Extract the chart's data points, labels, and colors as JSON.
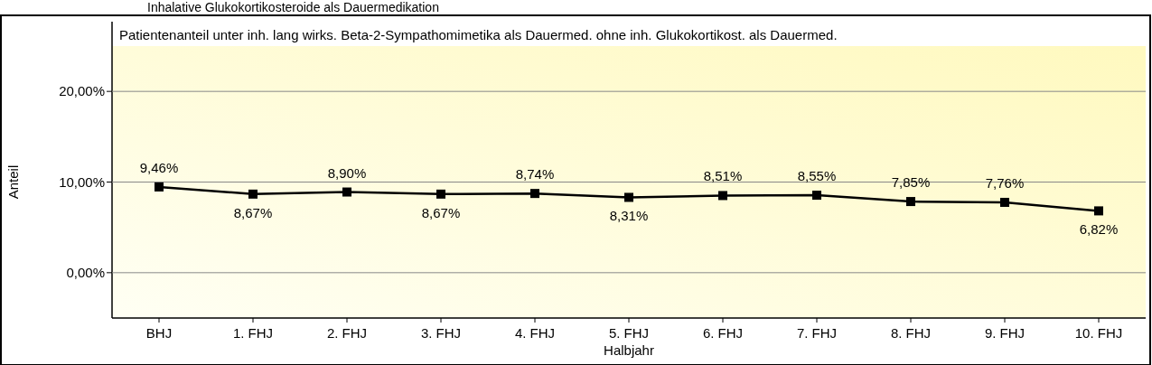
{
  "chart_data": {
    "type": "line",
    "title": "Inhalative Glukokortikosteroide als Dauermedikation",
    "subtitle": "Patientenanteil unter inh. lang wirks. Beta-2-Sympathomimetika als Dauermed. ohne inh. Glukokortikost. als Dauermed.",
    "xlabel": "Halbjahr",
    "ylabel": "Anteil",
    "categories": [
      "BHJ",
      "1. FHJ",
      "2. FHJ",
      "3. FHJ",
      "4. FHJ",
      "5. FHJ",
      "6. FHJ",
      "7. FHJ",
      "8. FHJ",
      "9. FHJ",
      "10. FHJ"
    ],
    "series": [
      {
        "color": "#000000",
        "values": [
          9.46,
          8.67,
          8.9,
          8.67,
          8.74,
          8.31,
          8.51,
          8.55,
          7.85,
          7.76,
          6.82
        ],
        "value_labels": [
          "9,46%",
          "8,67%",
          "8,90%",
          "8,67%",
          "8,74%",
          "8,31%",
          "8,51%",
          "8,55%",
          "7,85%",
          "7,76%",
          "6,82%"
        ]
      }
    ],
    "ylim": [
      -5,
      25
    ],
    "yticks": [
      {
        "value": 0,
        "label": "0,00%"
      },
      {
        "value": 10,
        "label": "10,00%"
      },
      {
        "value": 20,
        "label": "20,00%"
      }
    ],
    "grid": "y",
    "marker": "square",
    "line_style": "solid"
  }
}
